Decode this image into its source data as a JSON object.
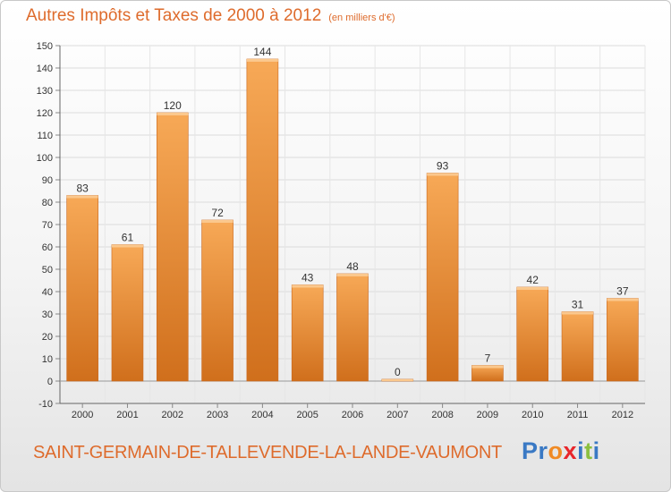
{
  "header": {
    "title": "Autres Impôts et Taxes de 2000 à 2012",
    "subtitle": "(en milliers d'€)"
  },
  "footer": {
    "commune": "SAINT-GERMAIN-DE-TALLEVENDE-LA-LANDE-VAUMONT",
    "logo": "Proxiti"
  },
  "colors": {
    "title": "#de6b2c",
    "bar_light": "#f7a957",
    "bar_dark": "#d06f1c",
    "logo_letters": [
      "#3a79c4",
      "#3a79c4",
      "#f08a24",
      "#e8262b",
      "#3a79c4",
      "#8bbf3f",
      "#3a79c4"
    ]
  },
  "chart_data": {
    "type": "bar",
    "title": "Autres Impôts et Taxes de 2000 à 2012",
    "subtitle": "(en milliers d'€)",
    "categories": [
      "2000",
      "2001",
      "2002",
      "2003",
      "2004",
      "2005",
      "2006",
      "2007",
      "2008",
      "2009",
      "2010",
      "2011",
      "2012"
    ],
    "values": [
      83,
      61,
      120,
      72,
      144,
      43,
      48,
      0,
      93,
      7,
      42,
      31,
      37
    ],
    "ylim": [
      -10,
      150
    ],
    "yticks": [
      -10,
      0,
      10,
      20,
      30,
      40,
      50,
      60,
      70,
      80,
      90,
      100,
      110,
      120,
      130,
      140,
      150
    ],
    "grid": true,
    "legend": "none"
  }
}
